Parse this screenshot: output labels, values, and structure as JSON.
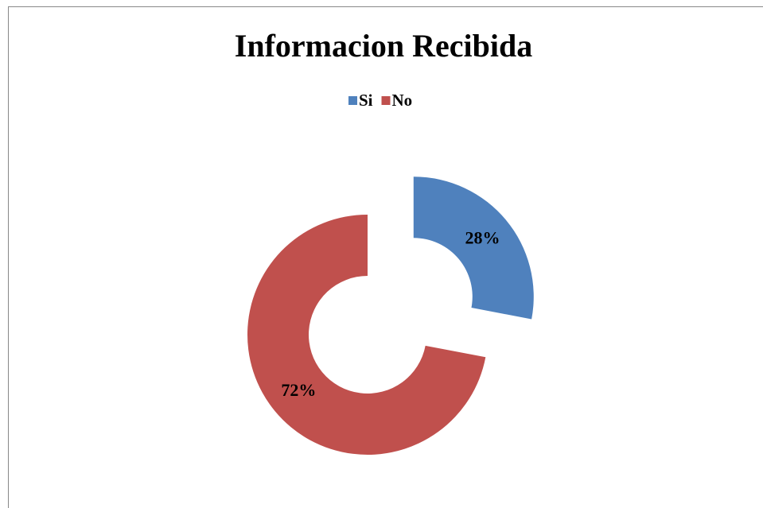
{
  "chart_data": {
    "type": "donut",
    "title": "Informacion Recibida",
    "categories": [
      "Si",
      "No"
    ],
    "values": [
      28,
      72
    ],
    "value_labels": [
      "28%",
      "72%"
    ],
    "colors": [
      "#4f81bd",
      "#c0504d"
    ],
    "legend": "top"
  }
}
